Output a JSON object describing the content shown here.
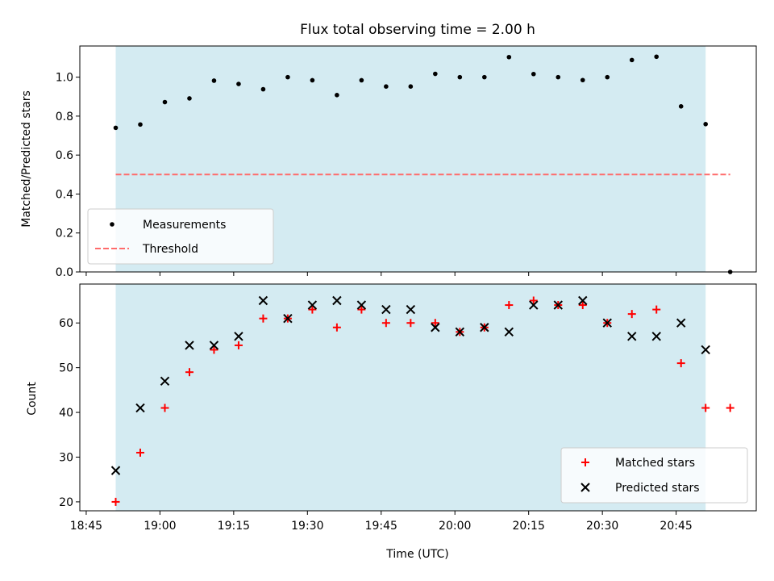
{
  "title": "Flux total observing time = 2.00 h",
  "x_ticks": [
    "18:45",
    "19:00",
    "19:15",
    "19:30",
    "19:45",
    "20:00",
    "20:15",
    "20:30",
    "20:45"
  ],
  "x_tick_minutes": [
    1125,
    1140,
    1155,
    1170,
    1185,
    1200,
    1215,
    1230,
    1245
  ],
  "colors": {
    "shade": "#add8e6",
    "threshold": "#ff6b6b",
    "matched": "#ff0000",
    "predicted": "#000000"
  },
  "chart_data": [
    {
      "type": "scatter",
      "title": "Flux total observing time = 2.00 h",
      "xlabel": "",
      "ylabel": "Matched/Predicted stars",
      "xlim": [
        1123.7,
        1261.3
      ],
      "ylim": [
        0,
        1.16
      ],
      "yticks": [
        0.0,
        0.2,
        0.4,
        0.6,
        0.8,
        1.0
      ],
      "ytick_labels": [
        "0.0",
        "0.2",
        "0.4",
        "0.6",
        "0.8",
        "1.0"
      ],
      "shaded_range": [
        1131,
        1251
      ],
      "legend_position": "lower-left",
      "series": [
        {
          "name": "Measurements",
          "x": [
            1131,
            1136,
            1141,
            1146,
            1151,
            1156,
            1161,
            1166,
            1171,
            1176,
            1181,
            1186,
            1191,
            1196,
            1201,
            1206,
            1211,
            1216,
            1221,
            1226,
            1231,
            1236,
            1241,
            1246,
            1251,
            1256
          ],
          "y": [
            0.74,
            0.757,
            0.872,
            0.891,
            0.982,
            0.965,
            0.938,
            1.0,
            0.984,
            0.908,
            0.984,
            0.952,
            0.952,
            1.017,
            1.0,
            1.0,
            1.103,
            1.016,
            1.0,
            0.985,
            1.0,
            1.088,
            1.105,
            0.85,
            0.759,
            0.0
          ]
        },
        {
          "name": "Threshold",
          "x": [
            1131,
            1256
          ],
          "y": [
            0.5,
            0.5
          ]
        }
      ]
    },
    {
      "type": "scatter",
      "xlabel": "Time (UTC)",
      "ylabel": "Count",
      "xlim": [
        1123.7,
        1261.3
      ],
      "ylim": [
        18,
        68.7
      ],
      "yticks": [
        20,
        30,
        40,
        50,
        60
      ],
      "ytick_labels": [
        "20",
        "30",
        "40",
        "50",
        "60"
      ],
      "shaded_range": [
        1131,
        1251
      ],
      "legend_position": "lower-right",
      "series": [
        {
          "name": "Matched stars",
          "x": [
            1131,
            1136,
            1141,
            1146,
            1151,
            1156,
            1161,
            1166,
            1171,
            1176,
            1181,
            1186,
            1191,
            1196,
            1201,
            1206,
            1211,
            1216,
            1221,
            1226,
            1231,
            1236,
            1241,
            1246,
            1251,
            1256
          ],
          "y": [
            20,
            31,
            41,
            49,
            54,
            55,
            61,
            61,
            63,
            59,
            63,
            60,
            60,
            60,
            58,
            59,
            64,
            65,
            64,
            64,
            60,
            62,
            63,
            51,
            41,
            41
          ]
        },
        {
          "name": "Predicted stars",
          "x": [
            1131,
            1136,
            1141,
            1146,
            1151,
            1156,
            1161,
            1166,
            1171,
            1176,
            1181,
            1186,
            1191,
            1196,
            1201,
            1206,
            1211,
            1216,
            1221,
            1226,
            1231,
            1236,
            1241,
            1246,
            1251
          ],
          "y": [
            27,
            41,
            47,
            55,
            55,
            57,
            65,
            61,
            64,
            65,
            64,
            63,
            63,
            59,
            58,
            59,
            58,
            64,
            64,
            65,
            60,
            57,
            57,
            60,
            54
          ]
        }
      ]
    }
  ]
}
